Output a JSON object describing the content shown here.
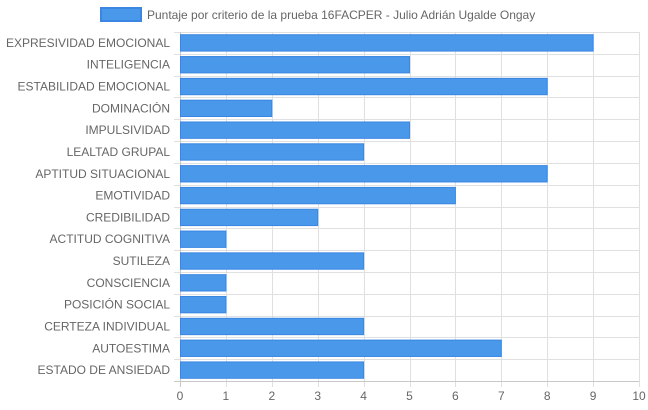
{
  "chart_data": {
    "type": "bar",
    "orientation": "horizontal",
    "categories": [
      "EXPRESIVIDAD EMOCIONAL",
      "INTELIGENCIA",
      "ESTABILIDAD EMOCIONAL",
      "DOMINACIÓN",
      "IMPULSIVIDAD",
      "LEALTAD GRUPAL",
      "APTITUD SITUACIONAL",
      "EMOTIVIDAD",
      "CREDIBILIDAD",
      "ACTITUD COGNITIVA",
      "SUTILEZA",
      "CONSCIENCIA",
      "POSICIÓN SOCIAL",
      "CERTEZA INDIVIDUAL",
      "AUTOESTIMA",
      "ESTADO DE ANSIEDAD"
    ],
    "series": [
      {
        "name": "Puntaje por criterio de la prueba 16FACPER - Julio Adrián Ugalde Ongay",
        "values": [
          9,
          5,
          8,
          2,
          5,
          4,
          8,
          6,
          3,
          1,
          4,
          1,
          1,
          4,
          7,
          4
        ],
        "color": "#4a98ea",
        "border_color": "#3a86e2"
      }
    ],
    "xlim": [
      0,
      10
    ],
    "x_ticks": [
      "0",
      "1",
      "2",
      "3",
      "4",
      "5",
      "6",
      "7",
      "8",
      "9",
      "10"
    ],
    "grid": true,
    "grid_color": "#e0e0e0",
    "legend_position": "top-center"
  }
}
